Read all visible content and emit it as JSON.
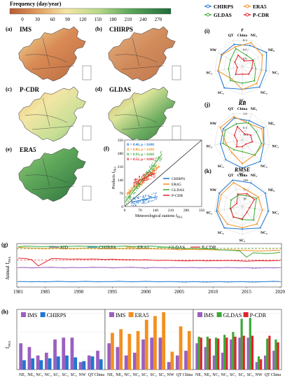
{
  "colorbar": {
    "title": "Frequency (day/year)",
    "ticks": [
      "0",
      "30",
      "60",
      "90",
      "120",
      "150",
      "180",
      "210",
      "240",
      "270"
    ]
  },
  "maps": [
    {
      "tag": "(a)",
      "name": "IMS"
    },
    {
      "tag": "(b)",
      "name": "CHIRPS"
    },
    {
      "tag": "(c)",
      "name": "P-CDR"
    },
    {
      "tag": "(d)",
      "name": "GLDAS"
    },
    {
      "tag": "(e)",
      "name": "ERA5"
    }
  ],
  "scatter": {
    "tag": "(f)",
    "ylabel": "Products f",
    "ylabel_sub": "PRA",
    "xlabel": "Meteorological stations f",
    "xlabel_sub": "PRA",
    "ticks": [
      "0",
      "70",
      "140",
      "210",
      "280",
      "350"
    ],
    "stats": [
      {
        "text": "R = 0.46, p < 0.001",
        "color": "#1f77d0"
      },
      {
        "text": "R = 0.86, p < 0.001",
        "color": "#f39020"
      },
      {
        "text": "R = 0.93, p < 0.001",
        "color": "#3aa935"
      },
      {
        "text": "R = 0.52, p < 0.001",
        "color": "#e0232b"
      }
    ],
    "legend": [
      {
        "name": "CHIRPS",
        "color": "#1f77d0"
      },
      {
        "name": "ERA5",
        "color": "#f39020"
      },
      {
        "name": "GLDAS",
        "color": "#3aa935"
      },
      {
        "name": "P-CDR",
        "color": "#e0232b"
      }
    ]
  },
  "top_legend": [
    {
      "name": "CHIRPS",
      "color": "#1f77d0"
    },
    {
      "name": "ERA5",
      "color": "#f39020"
    },
    {
      "name": "GLDAS",
      "color": "#3aa935"
    },
    {
      "name": "P-CDR",
      "color": "#e0232b"
    }
  ],
  "radars": [
    {
      "tag": "(i)",
      "title": "r",
      "sub": "China",
      "vals": [
        "0.3",
        "0.6",
        "0.9"
      ]
    },
    {
      "tag": "(j)",
      "title": "RB",
      "sub": "China",
      "vals": [
        "1.9",
        "1.1",
        "0.3",
        "-0.5"
      ]
    },
    {
      "tag": "(k)",
      "title": "RMSE",
      "sub": "China",
      "vals": [
        "130",
        "70",
        "10"
      ]
    }
  ],
  "radar_axes": [
    "QT",
    "NE1",
    "NE2",
    "NC1",
    "NC2",
    "SC1",
    "SC2",
    "SC3",
    "NW"
  ],
  "chart_data": [
    {
      "type": "line",
      "tag": "(g)",
      "ylabel": "Annual f",
      "ylabel_sub": "PRA",
      "x": [
        1981,
        1982,
        1983,
        1984,
        1985,
        1986,
        1987,
        1988,
        1989,
        1990,
        1991,
        1992,
        1993,
        1994,
        1995,
        1996,
        1997,
        1998,
        1999,
        2000,
        2001,
        2002,
        2003,
        2004,
        2005,
        2006,
        2007,
        2008,
        2009,
        2010,
        2011,
        2012,
        2013,
        2014,
        2015,
        2016,
        2017,
        2018,
        2019,
        2020
      ],
      "xticks": [
        "1981",
        "1985",
        "1990",
        "1995",
        "2000",
        "2005",
        "2010",
        "2015",
        "2020"
      ],
      "ylim": [
        0,
        230
      ],
      "series": [
        {
          "name": "SID",
          "color": "#9b5fc0",
          "values": [
            118,
            119,
            117,
            118,
            119,
            120,
            118,
            117,
            119,
            118,
            118,
            120,
            119,
            119,
            117,
            118,
            119,
            120,
            118,
            116,
            119,
            118,
            117,
            119,
            118,
            118,
            119,
            117,
            118,
            118,
            117,
            119,
            118,
            117,
            118,
            116,
            117,
            118,
            117,
            118
          ]
        },
        {
          "name": "CHIRPS",
          "color": "#1f77d0",
          "values": [
            62,
            62,
            61,
            62,
            61,
            62,
            63,
            62,
            61,
            62,
            63,
            62,
            61,
            62,
            62,
            63,
            62,
            61,
            62,
            63,
            62,
            61,
            62,
            62,
            61,
            60,
            62,
            61,
            60,
            61,
            62,
            60,
            61,
            62,
            61,
            60,
            61,
            62,
            63,
            62
          ]
        },
        {
          "name": "ERA5",
          "color": "#f39020",
          "values": [
            200,
            198,
            197,
            196,
            195,
            196,
            197,
            196,
            195,
            196,
            197,
            196,
            196,
            195,
            196,
            195,
            195,
            194,
            195,
            196,
            194,
            193,
            193,
            192,
            190,
            191,
            192,
            190,
            191,
            190,
            189,
            190,
            189,
            188,
            187,
            186,
            185,
            186,
            188,
            187
          ]
        },
        {
          "name": "GLDAS",
          "color": "#3aa935",
          "values": [
            202,
            205,
            204,
            203,
            203,
            204,
            203,
            204,
            204,
            205,
            204,
            204,
            203,
            204,
            203,
            204,
            205,
            203,
            203,
            204,
            205,
            202,
            201,
            199,
            197,
            195,
            196,
            195,
            194,
            193,
            190,
            189,
            188,
            185,
            160,
            178,
            176,
            175,
            176,
            180
          ]
        },
        {
          "name": "P-CDR",
          "color": "#e0232b",
          "values": [
            156,
            155,
            150,
            125,
            140,
            155,
            154,
            153,
            152,
            153,
            152,
            153,
            152,
            151,
            152,
            151,
            150,
            150,
            149,
            150,
            148,
            147,
            148,
            147,
            146,
            145,
            146,
            147,
            145,
            146,
            146,
            147,
            146,
            145,
            144,
            145,
            146,
            145,
            146,
            147
          ]
        }
      ]
    },
    {
      "type": "bar",
      "tag": "(h)",
      "ylabel": "f",
      "ylabel_sub": "PRA",
      "categories": [
        "NE1",
        "NE2",
        "NC1",
        "NC2",
        "SC1",
        "SC2",
        "SC3",
        "NW",
        "QT",
        "China"
      ],
      "groups": [
        {
          "series": [
            {
              "name": "IMS",
              "color": "#9b5fc0",
              "values": [
                140,
                120,
                75,
                90,
                160,
                170,
                170,
                40,
                75,
                100
              ]
            },
            {
              "name": "CHIRPS",
              "color": "#1f77d0",
              "values": [
                50,
                60,
                50,
                60,
                70,
                75,
                65,
                45,
                70,
                55
              ]
            }
          ]
        },
        {
          "series": [
            {
              "name": "IMS",
              "color": "#9b5fc0",
              "values": [
                140,
                120,
                75,
                90,
                160,
                170,
                170,
                40,
                75,
                100
              ]
            },
            {
              "name": "ERA5",
              "color": "#f39020",
              "values": [
                195,
                215,
                190,
                205,
                265,
                285,
                305,
                95,
                230,
                205
              ]
            }
          ]
        },
        {
          "series": [
            {
              "name": "IMS",
              "color": "#9b5fc0",
              "values": [
                140,
                120,
                75,
                90,
                160,
                170,
                170,
                40,
                75,
                100
              ]
            },
            {
              "name": "GLDAS",
              "color": "#3aa935",
              "values": [
                175,
                175,
                170,
                185,
                200,
                270,
                275,
                70,
                165,
                160
              ]
            },
            {
              "name": "P-CDR",
              "color": "#e0232b",
              "values": [
                170,
                165,
                165,
                170,
                175,
                180,
                180,
                55,
                180,
                145
              ]
            }
          ]
        }
      ],
      "ylim": [
        0,
        320
      ]
    }
  ]
}
